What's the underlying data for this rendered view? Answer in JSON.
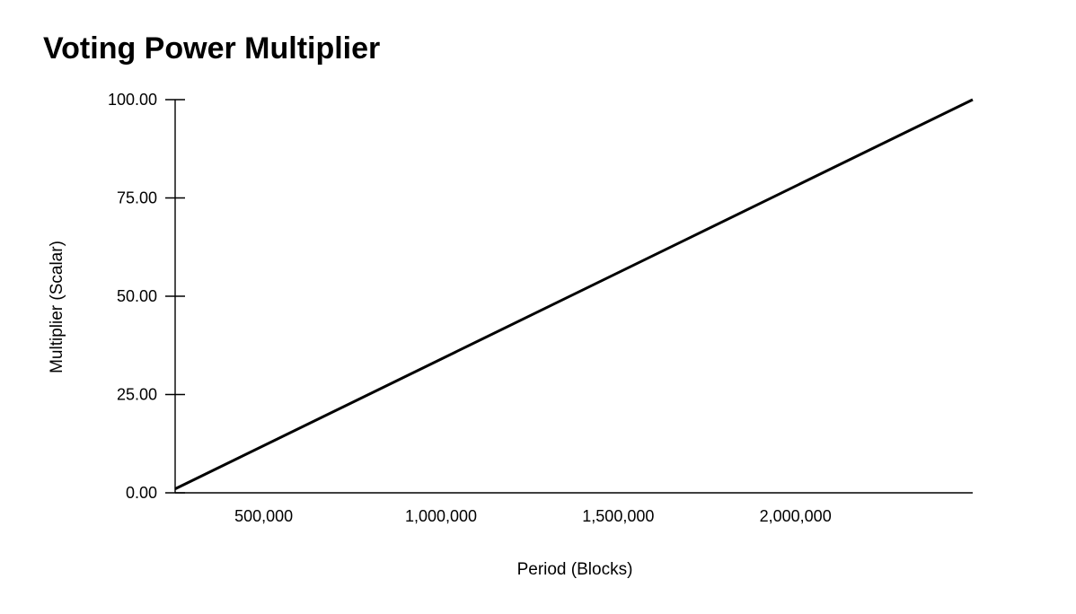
{
  "chart_data": {
    "type": "line",
    "title": "Voting Power Multiplier",
    "xlabel": "Period (Blocks)",
    "ylabel": "Multiplier (Scalar)",
    "xlim": [
      250000,
      2500000
    ],
    "ylim": [
      0,
      100
    ],
    "x_ticks": [
      500000,
      1000000,
      1500000,
      2000000
    ],
    "x_tick_labels": [
      "500,000",
      "1,000,000",
      "1,500,000",
      "2,000,000"
    ],
    "y_ticks": [
      0,
      25,
      50,
      75,
      100
    ],
    "y_tick_labels": [
      "0.00",
      "25.00",
      "50.00",
      "75.00",
      "100.00"
    ],
    "grid": false,
    "legend": "none",
    "series": [
      {
        "x": [
          250000,
          2500000
        ],
        "values": [
          1,
          100
        ],
        "color": "#000000"
      }
    ]
  }
}
